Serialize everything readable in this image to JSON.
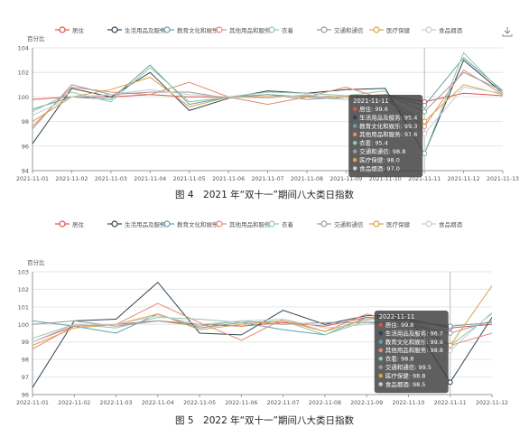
{
  "chart_data": [
    {
      "type": "line",
      "caption": "图 4　2021 年“双十一”期间八大类日指数",
      "y_unit": "百分比",
      "ylim": [
        94,
        104
      ],
      "yticks": [
        94,
        96,
        98,
        100,
        102,
        104
      ],
      "x": [
        "2021-11-01",
        "2021-11-02",
        "2021-11-03",
        "2021-11-04",
        "2021-11-05",
        "2021-11-06",
        "2021-11-07",
        "2021-11-08",
        "2021-11-09",
        "2021-11-10",
        "2021-11-11",
        "2021-11-12",
        "2021-11-13"
      ],
      "legend_position": "top",
      "grid": true,
      "hover_index": 10,
      "tooltip": {
        "title": "2021-11-11",
        "rows": [
          {
            "name": "居住",
            "value": "99.6"
          },
          {
            "name": "生活用品及服务",
            "value": "95.4"
          },
          {
            "name": "教育文化和娱乐",
            "value": "99.3"
          },
          {
            "name": "其他用品和服务",
            "value": "97.6"
          },
          {
            "name": "衣着",
            "value": "95.4"
          },
          {
            "name": "交通和通信",
            "value": "98.8"
          },
          {
            "name": "医疗保健",
            "value": "98.0"
          },
          {
            "name": "食品烟酒",
            "value": "97.0"
          }
        ]
      },
      "series": [
        {
          "name": "居住",
          "color": "#d9534f",
          "values": [
            99.8,
            100.0,
            100.0,
            100.2,
            100.0,
            100.0,
            100.0,
            100.1,
            100.0,
            100.2,
            99.6,
            100.3,
            100.1
          ]
        },
        {
          "name": "生活用品及服务",
          "color": "#2f4554",
          "values": [
            96.2,
            100.7,
            100.0,
            102.0,
            98.9,
            99.9,
            100.5,
            100.3,
            100.6,
            100.7,
            95.4,
            103.0,
            100.3
          ]
        },
        {
          "name": "教育文化和娱乐",
          "color": "#61a0a8",
          "values": [
            99.0,
            100.0,
            99.8,
            102.6,
            99.4,
            100.0,
            100.2,
            100.0,
            99.8,
            100.2,
            99.3,
            103.2,
            100.5
          ]
        },
        {
          "name": "其他用品和服务",
          "color": "#e58a72",
          "values": [
            97.6,
            100.8,
            100.4,
            100.2,
            101.2,
            100.0,
            99.4,
            100.0,
            100.8,
            99.8,
            97.6,
            102.2,
            100.2
          ]
        },
        {
          "name": "衣着",
          "color": "#91c7ae",
          "values": [
            98.8,
            100.4,
            99.6,
            102.4,
            99.6,
            100.0,
            100.4,
            100.3,
            100.1,
            100.5,
            95.4,
            103.6,
            100.3
          ]
        },
        {
          "name": "交通和通信",
          "color": "#9a9a9a",
          "values": [
            97.4,
            101.0,
            100.2,
            100.4,
            100.4,
            99.9,
            100.2,
            99.8,
            100.0,
            100.2,
            98.8,
            102.0,
            100.5
          ]
        },
        {
          "name": "医疗保健",
          "color": "#d9a441",
          "values": [
            98.0,
            100.0,
            100.6,
            101.6,
            99.2,
            100.0,
            100.0,
            100.1,
            100.0,
            99.9,
            98.0,
            101.0,
            100.2
          ]
        },
        {
          "name": "食品烟酒",
          "color": "#c4ccd3",
          "values": [
            98.5,
            100.0,
            100.2,
            100.6,
            100.2,
            100.0,
            99.9,
            100.2,
            99.8,
            100.0,
            97.0,
            100.8,
            100.3
          ]
        }
      ]
    },
    {
      "type": "line",
      "caption": "图 5　2022 年“双十一”期间八大类日指数",
      "y_unit": "百分比",
      "ylim": [
        96,
        103
      ],
      "yticks": [
        96,
        97,
        98,
        99,
        100,
        101,
        102,
        103
      ],
      "x": [
        "2022-11-01",
        "2022-11-02",
        "2022-11-03",
        "2022-11-04",
        "2022-11-05",
        "2022-11-06",
        "2022-11-07",
        "2022-11-08",
        "2022-11-09",
        "2022-11-10",
        "2022-11-11",
        "2022-11-12"
      ],
      "legend_position": "top",
      "grid": true,
      "hover_index": 10,
      "tooltip": {
        "title": "2022-11-11",
        "rows": [
          {
            "name": "居住",
            "value": "99.8"
          },
          {
            "name": "生活用品及服务",
            "value": "96.7"
          },
          {
            "name": "教育文化和娱乐",
            "value": "99.9"
          },
          {
            "name": "其他用品和服务",
            "value": "98.8"
          },
          {
            "name": "衣着",
            "value": "98.8"
          },
          {
            "name": "交通和通信",
            "value": "99.5"
          },
          {
            "name": "医疗保健",
            "value": "98.8"
          },
          {
            "name": "食品烟酒",
            "value": "98.5"
          }
        ]
      },
      "series": [
        {
          "name": "居住",
          "color": "#d9534f",
          "values": [
            99.0,
            99.9,
            100.0,
            100.2,
            100.0,
            99.9,
            100.1,
            99.9,
            100.4,
            100.3,
            99.8,
            100.0
          ]
        },
        {
          "name": "生活用品及服务",
          "color": "#2f4554",
          "values": [
            96.4,
            100.2,
            100.3,
            102.4,
            99.5,
            99.4,
            100.8,
            100.0,
            100.5,
            100.5,
            96.7,
            100.4
          ]
        },
        {
          "name": "教育文化和娱乐",
          "color": "#61a0a8",
          "values": [
            100.2,
            99.9,
            99.5,
            100.6,
            99.8,
            100.1,
            99.7,
            99.4,
            100.4,
            100.2,
            99.9,
            100.1
          ]
        },
        {
          "name": "其他用品和服务",
          "color": "#e58a72",
          "values": [
            98.6,
            99.9,
            100.0,
            101.2,
            100.1,
            99.1,
            100.3,
            99.6,
            100.6,
            100.0,
            98.8,
            99.5
          ]
        },
        {
          "name": "衣着",
          "color": "#91c7ae",
          "values": [
            99.2,
            100.0,
            99.8,
            100.4,
            100.3,
            100.1,
            100.2,
            99.4,
            100.2,
            100.0,
            98.8,
            100.6
          ]
        },
        {
          "name": "交通和通信",
          "color": "#9a9a9a",
          "values": [
            100.0,
            100.2,
            99.9,
            100.2,
            99.9,
            100.2,
            100.0,
            100.1,
            100.1,
            100.0,
            99.5,
            100.2
          ]
        },
        {
          "name": "医疗保健",
          "color": "#d9a441",
          "values": [
            98.8,
            99.8,
            100.0,
            100.6,
            99.7,
            100.0,
            100.2,
            99.6,
            100.3,
            100.4,
            98.8,
            102.2
          ]
        },
        {
          "name": "食品烟酒",
          "color": "#c4ccd3",
          "values": [
            99.0,
            100.0,
            100.0,
            100.5,
            100.0,
            100.2,
            100.3,
            99.8,
            100.0,
            100.2,
            98.5,
            100.7
          ]
        }
      ]
    }
  ]
}
